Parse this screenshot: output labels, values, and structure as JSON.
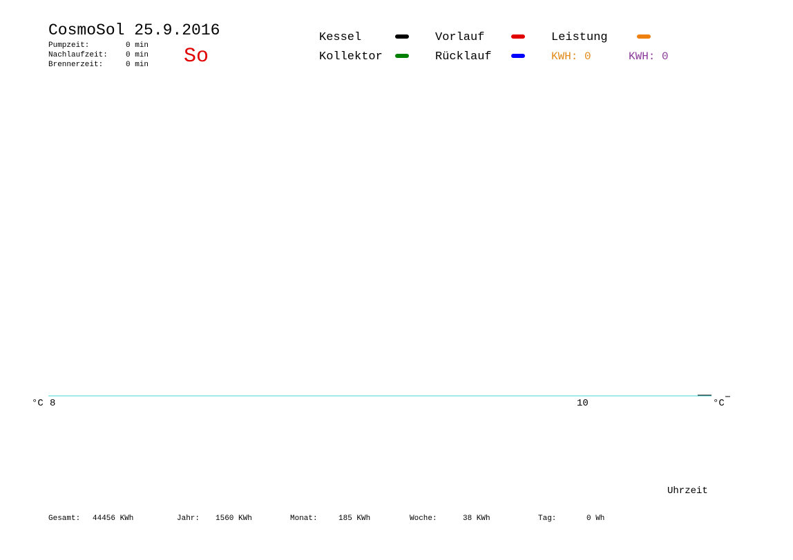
{
  "header": {
    "title": "CosmoSol 25.9.2016",
    "day": "So",
    "stats": [
      {
        "label": "Pumpzeit:",
        "value": "0 min"
      },
      {
        "label": "Nachlaufzeit:",
        "value": "0 min"
      },
      {
        "label": "Brennerzeit:",
        "value": "0 min"
      }
    ]
  },
  "legend": [
    {
      "name": "Kessel",
      "color": "#000000"
    },
    {
      "name": "Kollektor",
      "color": "#008000"
    },
    {
      "name": "Vorlauf",
      "color": "#e00000"
    },
    {
      "name": "Rücklauf",
      "color": "#0000ff"
    },
    {
      "name": "Leistung",
      "color": "#ee8010"
    }
  ],
  "kwh": [
    {
      "label": "KWH: 0",
      "color": "#e08a1a"
    },
    {
      "label": "KWH: 0",
      "color": "#8a3a9a"
    }
  ],
  "axis": {
    "left_unit": "°C",
    "right_unit": "°C",
    "x_ticks": [
      "8",
      "10"
    ],
    "x_label": "Uhrzeit"
  },
  "totals": [
    {
      "label": "Gesamt:",
      "value": "44456 KWh"
    },
    {
      "label": "Jahr:",
      "value": "1560 KWh"
    },
    {
      "label": "Monat:",
      "value": "185 KWh"
    },
    {
      "label": "Woche:",
      "value": "38 KWh"
    },
    {
      "label": "Tag:",
      "value": "0 Wh"
    }
  ]
}
